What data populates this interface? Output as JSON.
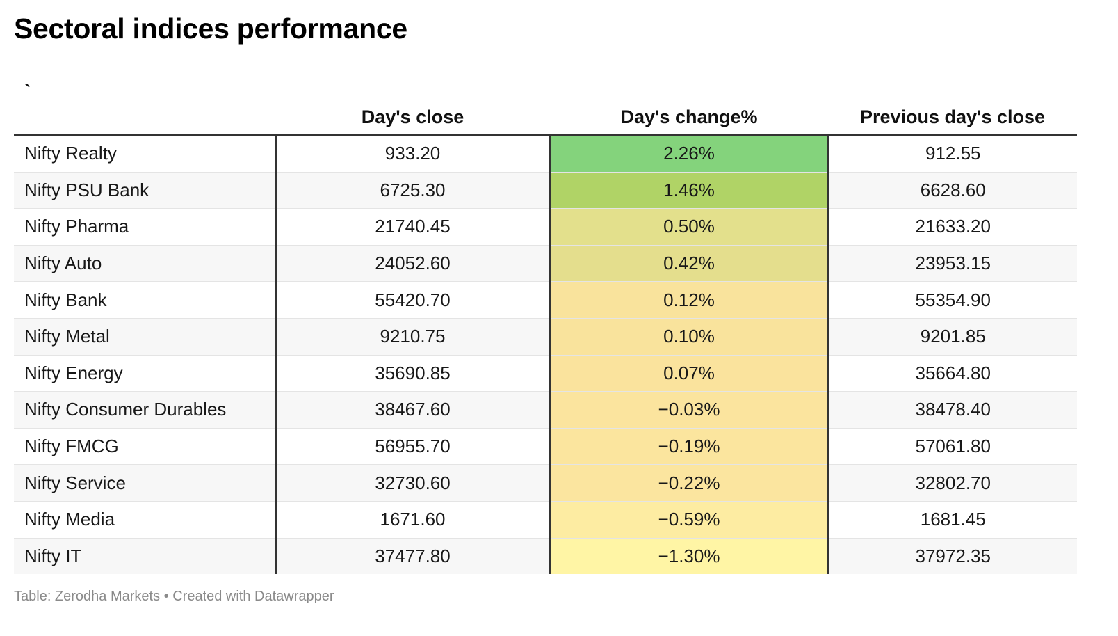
{
  "title": "Sectoral indices performance",
  "source_text": "Table: Zerodha Markets • Created with Datawrapper",
  "colors": {
    "scale_top": "#84d37c",
    "scale_mid": "#f9e39c",
    "scale_bottom": "#fff5a5",
    "header_rule": "#333333"
  },
  "chart_data": {
    "type": "table",
    "columns": [
      "`",
      "Day's close",
      "Day's change%",
      "Previous day's close"
    ],
    "rows": [
      {
        "name": "Nifty Realty",
        "close": "933.20",
        "change": "2.26%",
        "change_value": 2.26,
        "prev": "912.55",
        "color": "#84d37c"
      },
      {
        "name": "Nifty PSU Bank",
        "close": "6725.30",
        "change": "1.46%",
        "change_value": 1.46,
        "prev": "6628.60",
        "color": "#b0d366"
      },
      {
        "name": "Nifty Pharma",
        "close": "21740.45",
        "change": "0.50%",
        "change_value": 0.5,
        "prev": "21633.20",
        "color": "#e3e08c"
      },
      {
        "name": "Nifty Auto",
        "close": "24052.60",
        "change": "0.42%",
        "change_value": 0.42,
        "prev": "23953.15",
        "color": "#e4de8d"
      },
      {
        "name": "Nifty Bank",
        "close": "55420.70",
        "change": "0.12%",
        "change_value": 0.12,
        "prev": "55354.90",
        "color": "#f9e39c"
      },
      {
        "name": "Nifty Metal",
        "close": "9210.75",
        "change": "0.10%",
        "change_value": 0.1,
        "prev": "9201.85",
        "color": "#f9e39c"
      },
      {
        "name": "Nifty Energy",
        "close": "35690.85",
        "change": "0.07%",
        "change_value": 0.07,
        "prev": "35664.80",
        "color": "#fae39d"
      },
      {
        "name": "Nifty Consumer Durables",
        "close": "38467.60",
        "change": "−0.03%",
        "change_value": -0.03,
        "prev": "38478.40",
        "color": "#fbe49e"
      },
      {
        "name": "Nifty FMCG",
        "close": "56955.70",
        "change": "−0.19%",
        "change_value": -0.19,
        "prev": "57061.80",
        "color": "#fbe59e"
      },
      {
        "name": "Nifty Service",
        "close": "32730.60",
        "change": "−0.22%",
        "change_value": -0.22,
        "prev": "32802.70",
        "color": "#fbe59f"
      },
      {
        "name": "Nifty Media",
        "close": "1671.60",
        "change": "−0.59%",
        "change_value": -0.59,
        "prev": "1681.45",
        "color": "#fdeca2"
      },
      {
        "name": "Nifty IT",
        "close": "37477.80",
        "change": "−1.30%",
        "change_value": -1.3,
        "prev": "37972.35",
        "color": "#fff5a5"
      }
    ]
  }
}
